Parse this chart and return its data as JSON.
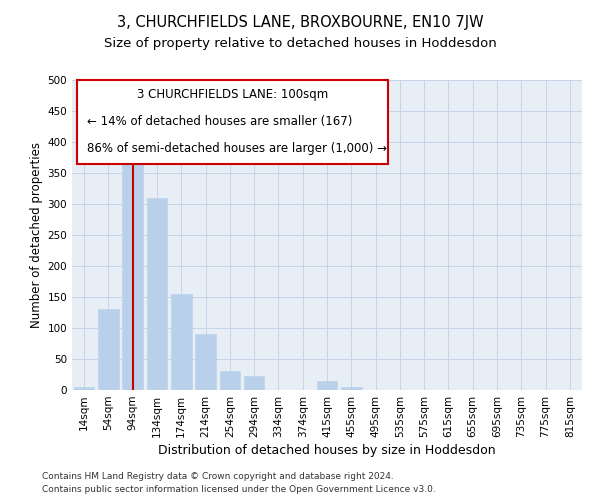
{
  "title": "3, CHURCHFIELDS LANE, BROXBOURNE, EN10 7JW",
  "subtitle": "Size of property relative to detached houses in Hoddesdon",
  "xlabel": "Distribution of detached houses by size in Hoddesdon",
  "ylabel": "Number of detached properties",
  "categories": [
    "14sqm",
    "54sqm",
    "94sqm",
    "134sqm",
    "174sqm",
    "214sqm",
    "254sqm",
    "294sqm",
    "334sqm",
    "374sqm",
    "415sqm",
    "455sqm",
    "495sqm",
    "535sqm",
    "575sqm",
    "615sqm",
    "655sqm",
    "695sqm",
    "735sqm",
    "775sqm",
    "815sqm"
  ],
  "values": [
    5,
    130,
    405,
    310,
    155,
    90,
    30,
    22,
    0,
    0,
    14,
    5,
    0,
    0,
    0,
    0,
    0,
    0,
    0,
    0,
    0
  ],
  "bar_color": "#b8d0ea",
  "bar_edgecolor": "#b8d0ea",
  "redline_x": 2,
  "redline_color": "#cc0000",
  "annotation_line1": "3 CHURCHFIELDS LANE: 100sqm",
  "annotation_line2": "← 14% of detached houses are smaller (167)",
  "annotation_line3": "86% of semi-detached houses are larger (1,000) →",
  "ylim": [
    0,
    500
  ],
  "yticks": [
    0,
    50,
    100,
    150,
    200,
    250,
    300,
    350,
    400,
    450,
    500
  ],
  "grid_color": "#c8d4e8",
  "bg_color": "#e8eef6",
  "footer_line1": "Contains HM Land Registry data © Crown copyright and database right 2024.",
  "footer_line2": "Contains public sector information licensed under the Open Government Licence v3.0.",
  "title_fontsize": 10.5,
  "subtitle_fontsize": 9.5,
  "xlabel_fontsize": 9,
  "ylabel_fontsize": 8.5,
  "tick_fontsize": 7.5,
  "annotation_fontsize": 8.5,
  "footer_fontsize": 6.5
}
